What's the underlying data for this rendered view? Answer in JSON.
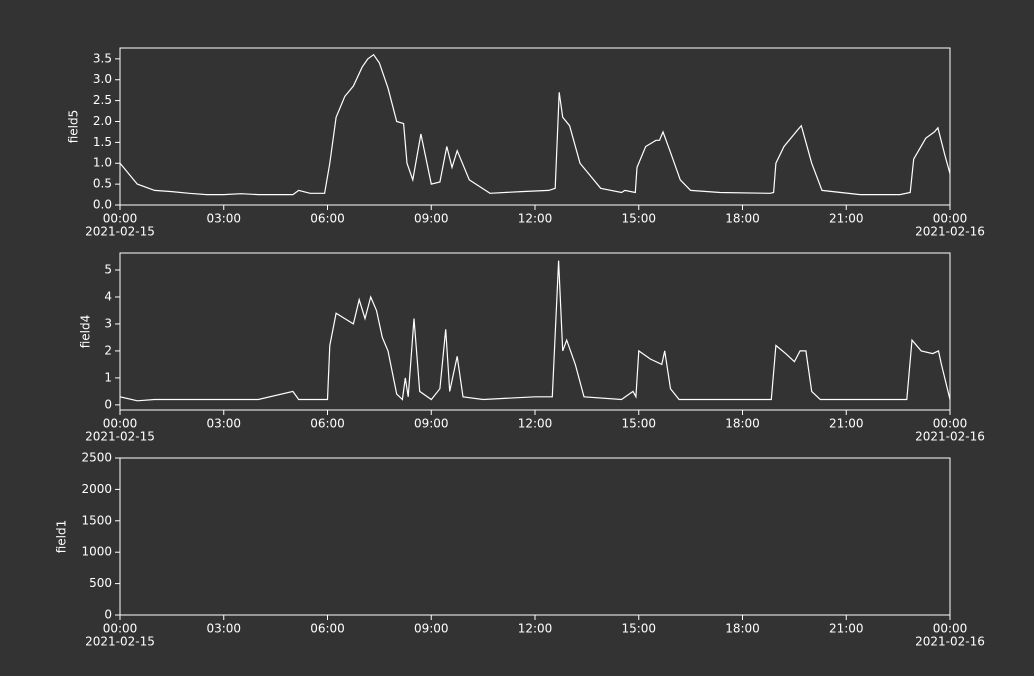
{
  "chart_data": [
    {
      "type": "line",
      "ylabel": "field5",
      "x": [
        "2021-02-15T00:00",
        "2021-02-15T00:30",
        "2021-02-15T01:00",
        "2021-02-15T01:30",
        "2021-02-15T02:00",
        "2021-02-15T02:30",
        "2021-02-15T03:00",
        "2021-02-15T03:30",
        "2021-02-15T04:00",
        "2021-02-15T04:30",
        "2021-02-15T05:00",
        "2021-02-15T05:10",
        "2021-02-15T05:30",
        "2021-02-15T05:55",
        "2021-02-15T06:04",
        "2021-02-15T06:15",
        "2021-02-15T06:30",
        "2021-02-15T06:45",
        "2021-02-15T07:00",
        "2021-02-15T07:10",
        "2021-02-15T07:20",
        "2021-02-15T07:30",
        "2021-02-15T07:45",
        "2021-02-15T08:00",
        "2021-02-15T08:12",
        "2021-02-15T08:18",
        "2021-02-15T08:28",
        "2021-02-15T08:42",
        "2021-02-15T09:00",
        "2021-02-15T09:15",
        "2021-02-15T09:27",
        "2021-02-15T09:36",
        "2021-02-15T09:45",
        "2021-02-15T10:06",
        "2021-02-15T10:42",
        "2021-02-15T11:36",
        "2021-02-15T12:24",
        "2021-02-15T12:35",
        "2021-02-15T12:42",
        "2021-02-15T12:48",
        "2021-02-15T13:00",
        "2021-02-15T13:18",
        "2021-02-15T13:54",
        "2021-02-15T14:30",
        "2021-02-15T14:36",
        "2021-02-15T14:54",
        "2021-02-15T14:57",
        "2021-02-15T15:12",
        "2021-02-15T15:30",
        "2021-02-15T15:36",
        "2021-02-15T15:42",
        "2021-02-15T15:54",
        "2021-02-15T16:12",
        "2021-02-15T16:30",
        "2021-02-15T17:21",
        "2021-02-15T18:48",
        "2021-02-15T18:54",
        "2021-02-15T18:58",
        "2021-02-15T19:12",
        "2021-02-15T19:36",
        "2021-02-15T19:42",
        "2021-02-15T20:00",
        "2021-02-15T20:18",
        "2021-02-15T21:24",
        "2021-02-15T22:33",
        "2021-02-15T22:51",
        "2021-02-15T22:57",
        "2021-02-15T23:18",
        "2021-02-15T23:33",
        "2021-02-15T23:39",
        "2021-02-15T23:51",
        "2021-02-16T00:00"
      ],
      "series": [
        {
          "name": "field5",
          "color": "#ffffff",
          "values": [
            1.0,
            0.5,
            0.35,
            0.32,
            0.28,
            0.25,
            0.25,
            0.27,
            0.25,
            0.25,
            0.25,
            0.35,
            0.28,
            0.28,
            1.0,
            2.1,
            2.6,
            2.85,
            3.3,
            3.5,
            3.6,
            3.4,
            2.8,
            2.0,
            1.95,
            1.0,
            0.6,
            1.7,
            0.5,
            0.55,
            1.4,
            0.9,
            1.3,
            0.6,
            0.28,
            0.32,
            0.35,
            0.4,
            2.7,
            2.1,
            1.9,
            1.0,
            0.4,
            0.3,
            0.35,
            0.3,
            0.9,
            1.4,
            1.55,
            1.55,
            1.75,
            1.3,
            0.6,
            0.35,
            0.3,
            0.28,
            0.3,
            1.0,
            1.4,
            1.8,
            1.9,
            1.0,
            0.35,
            0.25,
            0.25,
            0.3,
            1.1,
            1.6,
            1.75,
            1.85,
            1.2,
            0.75
          ]
        }
      ],
      "xlim": [
        "2021-02-15T00:00",
        "2021-02-16T00:00"
      ],
      "xticks": [
        {
          "value": "2021-02-15T00:00",
          "label": "00:00",
          "date": "2021-02-15"
        },
        {
          "value": "2021-02-15T03:00",
          "label": "03:00"
        },
        {
          "value": "2021-02-15T06:00",
          "label": "06:00"
        },
        {
          "value": "2021-02-15T09:00",
          "label": "09:00"
        },
        {
          "value": "2021-02-15T12:00",
          "label": "12:00"
        },
        {
          "value": "2021-02-15T15:00",
          "label": "15:00"
        },
        {
          "value": "2021-02-15T18:00",
          "label": "18:00"
        },
        {
          "value": "2021-02-15T21:00",
          "label": "21:00"
        },
        {
          "value": "2021-02-16T00:00",
          "label": "00:00",
          "date": "2021-02-16"
        }
      ],
      "ylim": [
        0,
        3.76
      ],
      "yticks": [
        {
          "value": 0,
          "label": "0.0"
        },
        0.5,
        {
          "value": 1,
          "label": "1.0"
        },
        1.5,
        {
          "value": 2,
          "label": "2.0"
        },
        2.5,
        {
          "value": 3,
          "label": "3.0"
        },
        3.5
      ]
    },
    {
      "type": "line",
      "ylabel": "field4",
      "x": [
        "2021-02-15T00:00",
        "2021-02-15T00:30",
        "2021-02-15T01:00",
        "2021-02-15T02:00",
        "2021-02-15T03:00",
        "2021-02-15T04:00",
        "2021-02-15T05:00",
        "2021-02-15T05:10",
        "2021-02-15T06:00",
        "2021-02-15T06:04",
        "2021-02-15T06:15",
        "2021-02-15T06:30",
        "2021-02-15T06:45",
        "2021-02-15T06:55",
        "2021-02-15T07:05",
        "2021-02-15T07:15",
        "2021-02-15T07:25",
        "2021-02-15T07:35",
        "2021-02-15T07:45",
        "2021-02-15T08:00",
        "2021-02-15T08:10",
        "2021-02-15T08:15",
        "2021-02-15T08:20",
        "2021-02-15T08:30",
        "2021-02-15T08:40",
        "2021-02-15T09:00",
        "2021-02-15T09:15",
        "2021-02-15T09:25",
        "2021-02-15T09:32",
        "2021-02-15T09:45",
        "2021-02-15T09:55",
        "2021-02-15T10:30",
        "2021-02-15T12:00",
        "2021-02-15T12:30",
        "2021-02-15T12:41",
        "2021-02-15T12:48",
        "2021-02-15T12:55",
        "2021-02-15T13:10",
        "2021-02-15T13:25",
        "2021-02-15T14:30",
        "2021-02-15T14:50",
        "2021-02-15T14:55",
        "2021-02-15T15:00",
        "2021-02-15T15:20",
        "2021-02-15T15:40",
        "2021-02-15T15:45",
        "2021-02-15T15:55",
        "2021-02-15T16:10",
        "2021-02-15T18:50",
        "2021-02-15T18:58",
        "2021-02-15T19:15",
        "2021-02-15T19:30",
        "2021-02-15T19:40",
        "2021-02-15T19:50",
        "2021-02-15T20:00",
        "2021-02-15T20:15",
        "2021-02-15T22:45",
        "2021-02-15T22:54",
        "2021-02-15T23:10",
        "2021-02-15T23:30",
        "2021-02-15T23:40",
        "2021-02-15T23:45",
        "2021-02-16T00:00"
      ],
      "series": [
        {
          "name": "field4",
          "color": "#ffffff",
          "values": [
            0.3,
            0.15,
            0.2,
            0.2,
            0.2,
            0.2,
            0.5,
            0.2,
            0.2,
            2.2,
            3.4,
            3.2,
            3.0,
            3.9,
            3.2,
            4.0,
            3.5,
            2.5,
            2.0,
            0.4,
            0.2,
            1.0,
            0.3,
            3.2,
            0.5,
            0.2,
            0.6,
            2.8,
            0.5,
            1.8,
            0.3,
            0.2,
            0.3,
            0.3,
            5.35,
            2.0,
            2.4,
            1.5,
            0.3,
            0.2,
            0.5,
            0.3,
            2.0,
            1.7,
            1.5,
            2.0,
            0.6,
            0.2,
            0.2,
            2.2,
            1.9,
            1.6,
            2.0,
            2.0,
            0.5,
            0.2,
            0.2,
            2.4,
            2.0,
            1.9,
            2.0,
            1.5,
            0.2
          ]
        }
      ],
      "xlim": [
        "2021-02-15T00:00",
        "2021-02-16T00:00"
      ],
      "xticks": [
        {
          "value": "2021-02-15T00:00",
          "label": "00:00",
          "date": "2021-02-15"
        },
        {
          "value": "2021-02-15T03:00",
          "label": "03:00"
        },
        {
          "value": "2021-02-15T06:00",
          "label": "06:00"
        },
        {
          "value": "2021-02-15T09:00",
          "label": "09:00"
        },
        {
          "value": "2021-02-15T12:00",
          "label": "12:00"
        },
        {
          "value": "2021-02-15T15:00",
          "label": "15:00"
        },
        {
          "value": "2021-02-15T18:00",
          "label": "18:00"
        },
        {
          "value": "2021-02-15T21:00",
          "label": "21:00"
        },
        {
          "value": "2021-02-16T00:00",
          "label": "00:00",
          "date": "2021-02-16"
        }
      ],
      "ylim": [
        -0.19,
        5.63
      ],
      "yticks": [
        0,
        1,
        2,
        3,
        4,
        5
      ]
    },
    {
      "type": "line",
      "ylabel": "field1",
      "xlim": [
        "2021-02-15T00:00",
        "2021-02-16T00:00"
      ],
      "xticks": [
        {
          "value": "2021-02-15T00:00",
          "label": "00:00",
          "date": "2021-02-15"
        },
        {
          "value": "2021-02-15T03:00",
          "label": "03:00"
        },
        {
          "value": "2021-02-15T06:00",
          "label": "06:00"
        },
        {
          "value": "2021-02-15T09:00",
          "label": "09:00"
        },
        {
          "value": "2021-02-15T12:00",
          "label": "12:00"
        },
        {
          "value": "2021-02-15T15:00",
          "label": "15:00"
        },
        {
          "value": "2021-02-15T18:00",
          "label": "18:00"
        },
        {
          "value": "2021-02-15T21:00",
          "label": "21:00"
        },
        {
          "value": "2021-02-16T00:00",
          "label": "00:00",
          "date": "2021-02-16"
        }
      ],
      "ylim": [
        0,
        2500
      ],
      "yticks": [
        0,
        500,
        1000,
        1500,
        2000,
        2500
      ]
    }
  ]
}
